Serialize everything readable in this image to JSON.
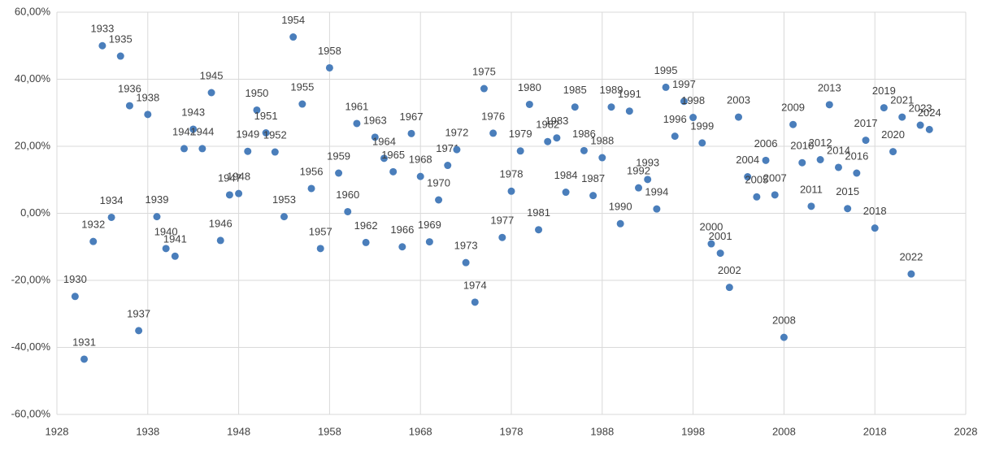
{
  "chart_data": {
    "type": "scatter",
    "color": "#4a7ebb",
    "grid": true,
    "xlim": [
      1928,
      2028
    ],
    "xticks": [
      1928,
      1938,
      1948,
      1958,
      1968,
      1978,
      1988,
      1998,
      2008,
      2018,
      2028
    ],
    "ylim": [
      -60,
      60
    ],
    "yticks": [
      {
        "value": -60,
        "label": "-60,00%"
      },
      {
        "value": -40,
        "label": "-40,00%"
      },
      {
        "value": -20,
        "label": "-20,00%"
      },
      {
        "value": 0,
        "label": "0,00%"
      },
      {
        "value": 20,
        "label": "20,00%"
      },
      {
        "value": 40,
        "label": "40,00%"
      },
      {
        "value": 60,
        "label": "60,00%"
      }
    ],
    "x": [
      1930,
      1931,
      1932,
      1933,
      1934,
      1935,
      1936,
      1937,
      1938,
      1939,
      1940,
      1941,
      1942,
      1943,
      1944,
      1945,
      1946,
      1947,
      1948,
      1949,
      1950,
      1951,
      1952,
      1953,
      1954,
      1955,
      1956,
      1957,
      1958,
      1959,
      1960,
      1961,
      1962,
      1963,
      1964,
      1965,
      1966,
      1967,
      1968,
      1969,
      1970,
      1971,
      1972,
      1973,
      1974,
      1975,
      1976,
      1977,
      1978,
      1979,
      1980,
      1981,
      1982,
      1983,
      1984,
      1985,
      1986,
      1987,
      1988,
      1989,
      1990,
      1991,
      1992,
      1993,
      1994,
      1995,
      1996,
      1997,
      1998,
      1999,
      2000,
      2001,
      2002,
      2003,
      2004,
      2005,
      2006,
      2007,
      2008,
      2009,
      2010,
      2011,
      2012,
      2013,
      2014,
      2015,
      2016,
      2017,
      2018,
      2019,
      2020,
      2021,
      2022,
      2023,
      2024
    ],
    "values": [
      -24.8,
      -43.5,
      -8.4,
      50.0,
      -1.2,
      46.9,
      32.1,
      -35.0,
      29.5,
      -1.0,
      -10.5,
      -12.8,
      19.3,
      25.1,
      19.3,
      36.0,
      -8.1,
      5.5,
      5.9,
      18.5,
      30.8,
      24.0,
      18.3,
      -1.0,
      52.6,
      32.6,
      7.4,
      -10.5,
      43.4,
      12.0,
      0.5,
      26.8,
      -8.7,
      22.7,
      16.4,
      12.4,
      -10.0,
      23.8,
      11.0,
      -8.5,
      4.0,
      14.3,
      19.0,
      -14.7,
      -26.5,
      37.2,
      23.9,
      -7.2,
      6.6,
      18.6,
      32.5,
      -4.9,
      21.4,
      22.5,
      6.3,
      31.7,
      18.7,
      5.3,
      16.6,
      31.7,
      -3.1,
      30.5,
      7.6,
      10.1,
      1.3,
      37.6,
      23.0,
      33.4,
      28.6,
      21.0,
      -9.1,
      -11.9,
      -22.1,
      28.7,
      10.9,
      4.9,
      15.8,
      5.5,
      -37.0,
      26.5,
      15.1,
      2.1,
      16.0,
      32.4,
      13.7,
      1.4,
      12.0,
      21.8,
      -4.4,
      31.5,
      18.4,
      28.7,
      -18.1,
      26.3,
      25.0
    ]
  }
}
